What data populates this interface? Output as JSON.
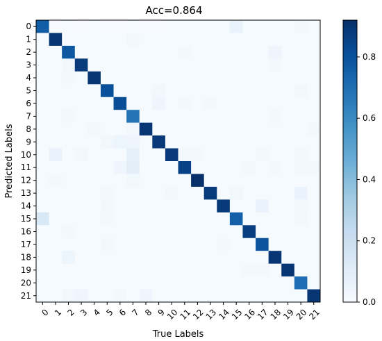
{
  "chart_data": {
    "type": "heatmap",
    "title": "Acc=0.864",
    "xlabel": "True Labels",
    "ylabel": "Predicted Labels",
    "x_categories": [
      "0",
      "1",
      "2",
      "3",
      "4",
      "5",
      "6",
      "7",
      "8",
      "9",
      "10",
      "11",
      "12",
      "13",
      "14",
      "15",
      "16",
      "17",
      "18",
      "19",
      "20",
      "21"
    ],
    "y_categories": [
      "0",
      "1",
      "2",
      "3",
      "4",
      "5",
      "6",
      "7",
      "8",
      "9",
      "10",
      "11",
      "12",
      "13",
      "14",
      "15",
      "16",
      "17",
      "18",
      "19",
      "20",
      "21"
    ],
    "colormap": "Blues",
    "color_range": [
      0.0,
      0.92
    ],
    "colorbar_ticks": [
      "0.0",
      "0.2",
      "0.4",
      "0.6",
      "0.8"
    ],
    "colorbar_tick_values": [
      0.0,
      0.2,
      0.4,
      0.6,
      0.8
    ],
    "values": [
      [
        0.76,
        0.0,
        0.01,
        0.0,
        0.01,
        0.0,
        0.0,
        0.01,
        0.0,
        0.0,
        0.01,
        0.01,
        0.01,
        0.01,
        0.01,
        0.06,
        0.01,
        0.01,
        0.01,
        0.01,
        0.02,
        0.01
      ],
      [
        0.01,
        0.9,
        0.01,
        0.01,
        0.01,
        0.01,
        0.01,
        0.02,
        0.01,
        0.01,
        0.01,
        0.01,
        0.01,
        0.01,
        0.01,
        0.01,
        0.01,
        0.01,
        0.01,
        0.01,
        0.01,
        0.01
      ],
      [
        0.01,
        0.01,
        0.78,
        0.01,
        0.01,
        0.01,
        0.01,
        0.01,
        0.01,
        0.01,
        0.01,
        0.02,
        0.01,
        0.01,
        0.01,
        0.01,
        0.01,
        0.01,
        0.04,
        0.01,
        0.01,
        0.01
      ],
      [
        0.01,
        0.01,
        0.03,
        0.88,
        0.01,
        0.01,
        0.01,
        0.01,
        0.01,
        0.01,
        0.01,
        0.01,
        0.01,
        0.01,
        0.01,
        0.01,
        0.01,
        0.01,
        0.02,
        0.01,
        0.01,
        0.01
      ],
      [
        0.01,
        0.01,
        0.02,
        0.01,
        0.9,
        0.01,
        0.01,
        0.01,
        0.01,
        0.01,
        0.01,
        0.01,
        0.01,
        0.01,
        0.01,
        0.01,
        0.01,
        0.01,
        0.01,
        0.01,
        0.01,
        0.01
      ],
      [
        0.01,
        0.01,
        0.01,
        0.01,
        0.01,
        0.81,
        0.01,
        0.01,
        0.01,
        0.03,
        0.01,
        0.01,
        0.01,
        0.01,
        0.01,
        0.01,
        0.01,
        0.01,
        0.01,
        0.01,
        0.03,
        0.01
      ],
      [
        0.01,
        0.01,
        0.01,
        0.01,
        0.01,
        0.01,
        0.82,
        0.01,
        0.01,
        0.04,
        0.01,
        0.02,
        0.01,
        0.02,
        0.01,
        0.01,
        0.01,
        0.01,
        0.01,
        0.01,
        0.01,
        0.01
      ],
      [
        0.01,
        0.01,
        0.02,
        0.01,
        0.01,
        0.01,
        0.01,
        0.68,
        0.01,
        0.01,
        0.01,
        0.01,
        0.01,
        0.01,
        0.01,
        0.01,
        0.01,
        0.01,
        0.02,
        0.01,
        0.01,
        0.01
      ],
      [
        0.01,
        0.01,
        0.01,
        0.01,
        0.02,
        0.01,
        0.01,
        0.02,
        0.9,
        0.01,
        0.01,
        0.01,
        0.01,
        0.01,
        0.01,
        0.01,
        0.01,
        0.01,
        0.01,
        0.01,
        0.01,
        0.02
      ],
      [
        0.01,
        0.01,
        0.01,
        0.01,
        0.01,
        0.03,
        0.05,
        0.04,
        0.01,
        0.89,
        0.01,
        0.01,
        0.01,
        0.01,
        0.01,
        0.01,
        0.01,
        0.01,
        0.01,
        0.01,
        0.01,
        0.01
      ],
      [
        0.01,
        0.06,
        0.01,
        0.03,
        0.01,
        0.01,
        0.01,
        0.08,
        0.01,
        0.01,
        0.89,
        0.02,
        0.02,
        0.01,
        0.01,
        0.01,
        0.01,
        0.02,
        0.01,
        0.01,
        0.02,
        0.01
      ],
      [
        0.01,
        0.01,
        0.01,
        0.01,
        0.01,
        0.01,
        0.04,
        0.09,
        0.01,
        0.01,
        0.01,
        0.86,
        0.01,
        0.01,
        0.01,
        0.01,
        0.02,
        0.01,
        0.02,
        0.01,
        0.03,
        0.02
      ],
      [
        0.01,
        0.02,
        0.01,
        0.01,
        0.01,
        0.01,
        0.01,
        0.03,
        0.01,
        0.01,
        0.01,
        0.01,
        0.92,
        0.01,
        0.01,
        0.01,
        0.01,
        0.01,
        0.01,
        0.01,
        0.01,
        0.01
      ],
      [
        0.01,
        0.01,
        0.01,
        0.01,
        0.01,
        0.02,
        0.01,
        0.01,
        0.01,
        0.01,
        0.02,
        0.01,
        0.01,
        0.88,
        0.01,
        0.03,
        0.01,
        0.01,
        0.01,
        0.01,
        0.06,
        0.01
      ],
      [
        0.01,
        0.01,
        0.01,
        0.01,
        0.01,
        0.03,
        0.01,
        0.01,
        0.01,
        0.01,
        0.01,
        0.01,
        0.01,
        0.01,
        0.89,
        0.01,
        0.01,
        0.06,
        0.01,
        0.01,
        0.02,
        0.01
      ],
      [
        0.14,
        0.01,
        0.01,
        0.01,
        0.01,
        0.02,
        0.01,
        0.01,
        0.01,
        0.01,
        0.01,
        0.01,
        0.01,
        0.01,
        0.01,
        0.75,
        0.01,
        0.01,
        0.01,
        0.01,
        0.03,
        0.01
      ],
      [
        0.01,
        0.01,
        0.02,
        0.01,
        0.01,
        0.01,
        0.01,
        0.01,
        0.01,
        0.01,
        0.01,
        0.01,
        0.01,
        0.01,
        0.01,
        0.01,
        0.87,
        0.01,
        0.01,
        0.01,
        0.01,
        0.01
      ],
      [
        0.01,
        0.01,
        0.01,
        0.01,
        0.01,
        0.03,
        0.01,
        0.01,
        0.01,
        0.01,
        0.01,
        0.01,
        0.01,
        0.01,
        0.02,
        0.01,
        0.01,
        0.79,
        0.01,
        0.01,
        0.01,
        0.01
      ],
      [
        0.01,
        0.01,
        0.05,
        0.01,
        0.01,
        0.01,
        0.01,
        0.01,
        0.01,
        0.01,
        0.01,
        0.01,
        0.01,
        0.01,
        0.01,
        0.01,
        0.01,
        0.01,
        0.9,
        0.01,
        0.01,
        0.01
      ],
      [
        0.01,
        0.01,
        0.01,
        0.01,
        0.01,
        0.01,
        0.01,
        0.01,
        0.01,
        0.01,
        0.01,
        0.01,
        0.01,
        0.01,
        0.01,
        0.01,
        0.02,
        0.02,
        0.01,
        0.9,
        0.01,
        0.01
      ],
      [
        0.01,
        0.01,
        0.01,
        0.01,
        0.01,
        0.01,
        0.01,
        0.01,
        0.01,
        0.01,
        0.01,
        0.01,
        0.01,
        0.01,
        0.01,
        0.01,
        0.01,
        0.01,
        0.01,
        0.01,
        0.7,
        0.01
      ],
      [
        0.01,
        0.01,
        0.03,
        0.04,
        0.01,
        0.01,
        0.02,
        0.01,
        0.04,
        0.01,
        0.01,
        0.01,
        0.01,
        0.01,
        0.01,
        0.01,
        0.01,
        0.01,
        0.01,
        0.01,
        0.01,
        0.9
      ]
    ]
  }
}
